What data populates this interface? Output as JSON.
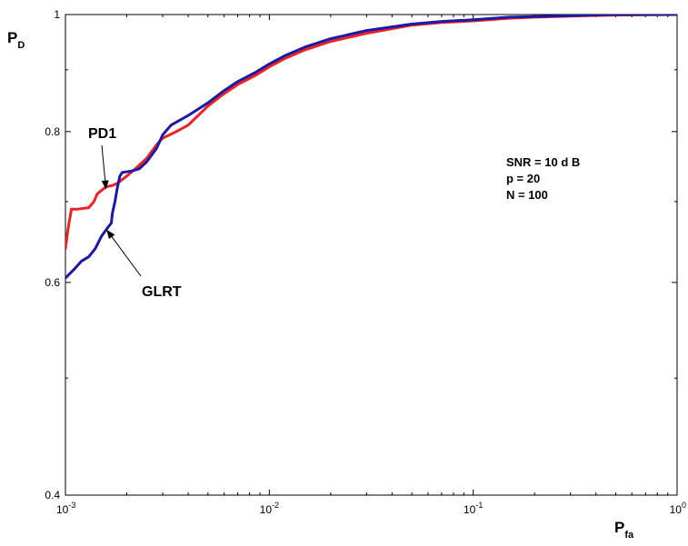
{
  "chart_data": {
    "type": "line",
    "title": "",
    "xscale": "log",
    "yscale": "log",
    "xlim": [
      0.001,
      1
    ],
    "ylim": [
      0.4,
      1
    ],
    "grid": false,
    "legend": "none",
    "xlabel": {
      "main": "P",
      "sub": "fa"
    },
    "ylabel": {
      "main": "P",
      "sub": "D"
    },
    "x_ticks": [
      {
        "value": 0.001,
        "base": "10",
        "exp": "-3"
      },
      {
        "value": 0.01,
        "base": "10",
        "exp": "-2"
      },
      {
        "value": 0.1,
        "base": "10",
        "exp": "-1"
      },
      {
        "value": 1,
        "base": "10",
        "exp": "0"
      }
    ],
    "y_ticks": [
      {
        "value": 0.4,
        "label": "0.4"
      },
      {
        "value": 0.6,
        "label": "0.6"
      },
      {
        "value": 0.8,
        "label": "0.8"
      },
      {
        "value": 1.0,
        "label": "1"
      }
    ],
    "series": [
      {
        "key": "pd1",
        "color": "#ee2222",
        "x": [
          0.001,
          0.00103,
          0.00107,
          0.00115,
          0.0013,
          0.00138,
          0.00143,
          0.0015,
          0.00158,
          0.0017,
          0.0018,
          0.002,
          0.0022,
          0.0025,
          0.0028,
          0.003,
          0.0035,
          0.004,
          0.005,
          0.006,
          0.007,
          0.0085,
          0.01,
          0.012,
          0.015,
          0.02,
          0.03,
          0.05,
          0.07,
          0.1,
          0.15,
          0.2,
          0.3,
          0.5,
          1.0
        ],
        "y": [
          0.64,
          0.665,
          0.69,
          0.69,
          0.692,
          0.7,
          0.71,
          0.715,
          0.72,
          0.722,
          0.725,
          0.735,
          0.745,
          0.76,
          0.78,
          0.79,
          0.8,
          0.81,
          0.84,
          0.86,
          0.875,
          0.89,
          0.905,
          0.92,
          0.935,
          0.95,
          0.965,
          0.98,
          0.985,
          0.988,
          0.993,
          0.995,
          0.997,
          0.999,
          1.0
        ]
      },
      {
        "key": "glrt",
        "color": "#1a1aa6",
        "x": [
          0.001,
          0.0011,
          0.0012,
          0.0013,
          0.0014,
          0.0015,
          0.0016,
          0.00168,
          0.0017,
          0.00175,
          0.0018,
          0.00185,
          0.0019,
          0.0021,
          0.0023,
          0.0025,
          0.0028,
          0.003,
          0.0033,
          0.004,
          0.005,
          0.006,
          0.007,
          0.0085,
          0.01,
          0.012,
          0.015,
          0.02,
          0.03,
          0.05,
          0.07,
          0.1,
          0.15,
          0.2,
          0.3,
          0.5,
          1.0
        ],
        "y": [
          0.605,
          0.615,
          0.625,
          0.63,
          0.64,
          0.655,
          0.665,
          0.672,
          0.685,
          0.7,
          0.72,
          0.735,
          0.74,
          0.742,
          0.745,
          0.755,
          0.775,
          0.795,
          0.81,
          0.825,
          0.845,
          0.865,
          0.88,
          0.895,
          0.91,
          0.925,
          0.94,
          0.955,
          0.97,
          0.982,
          0.987,
          0.99,
          0.995,
          0.996,
          0.998,
          1.0,
          1.0
        ]
      }
    ],
    "annotations": [
      {
        "key": "pd1",
        "text": "PD1",
        "series": "pd1",
        "arrow_to": {
          "x": 0.00158,
          "y": 0.72
        }
      },
      {
        "key": "glrt",
        "text": "GLRT",
        "series": "glrt",
        "arrow_to": {
          "x": 0.0016,
          "y": 0.665
        }
      }
    ],
    "params_text": [
      "SNR = 10 d B",
      "p = 20",
      "N = 100"
    ]
  }
}
